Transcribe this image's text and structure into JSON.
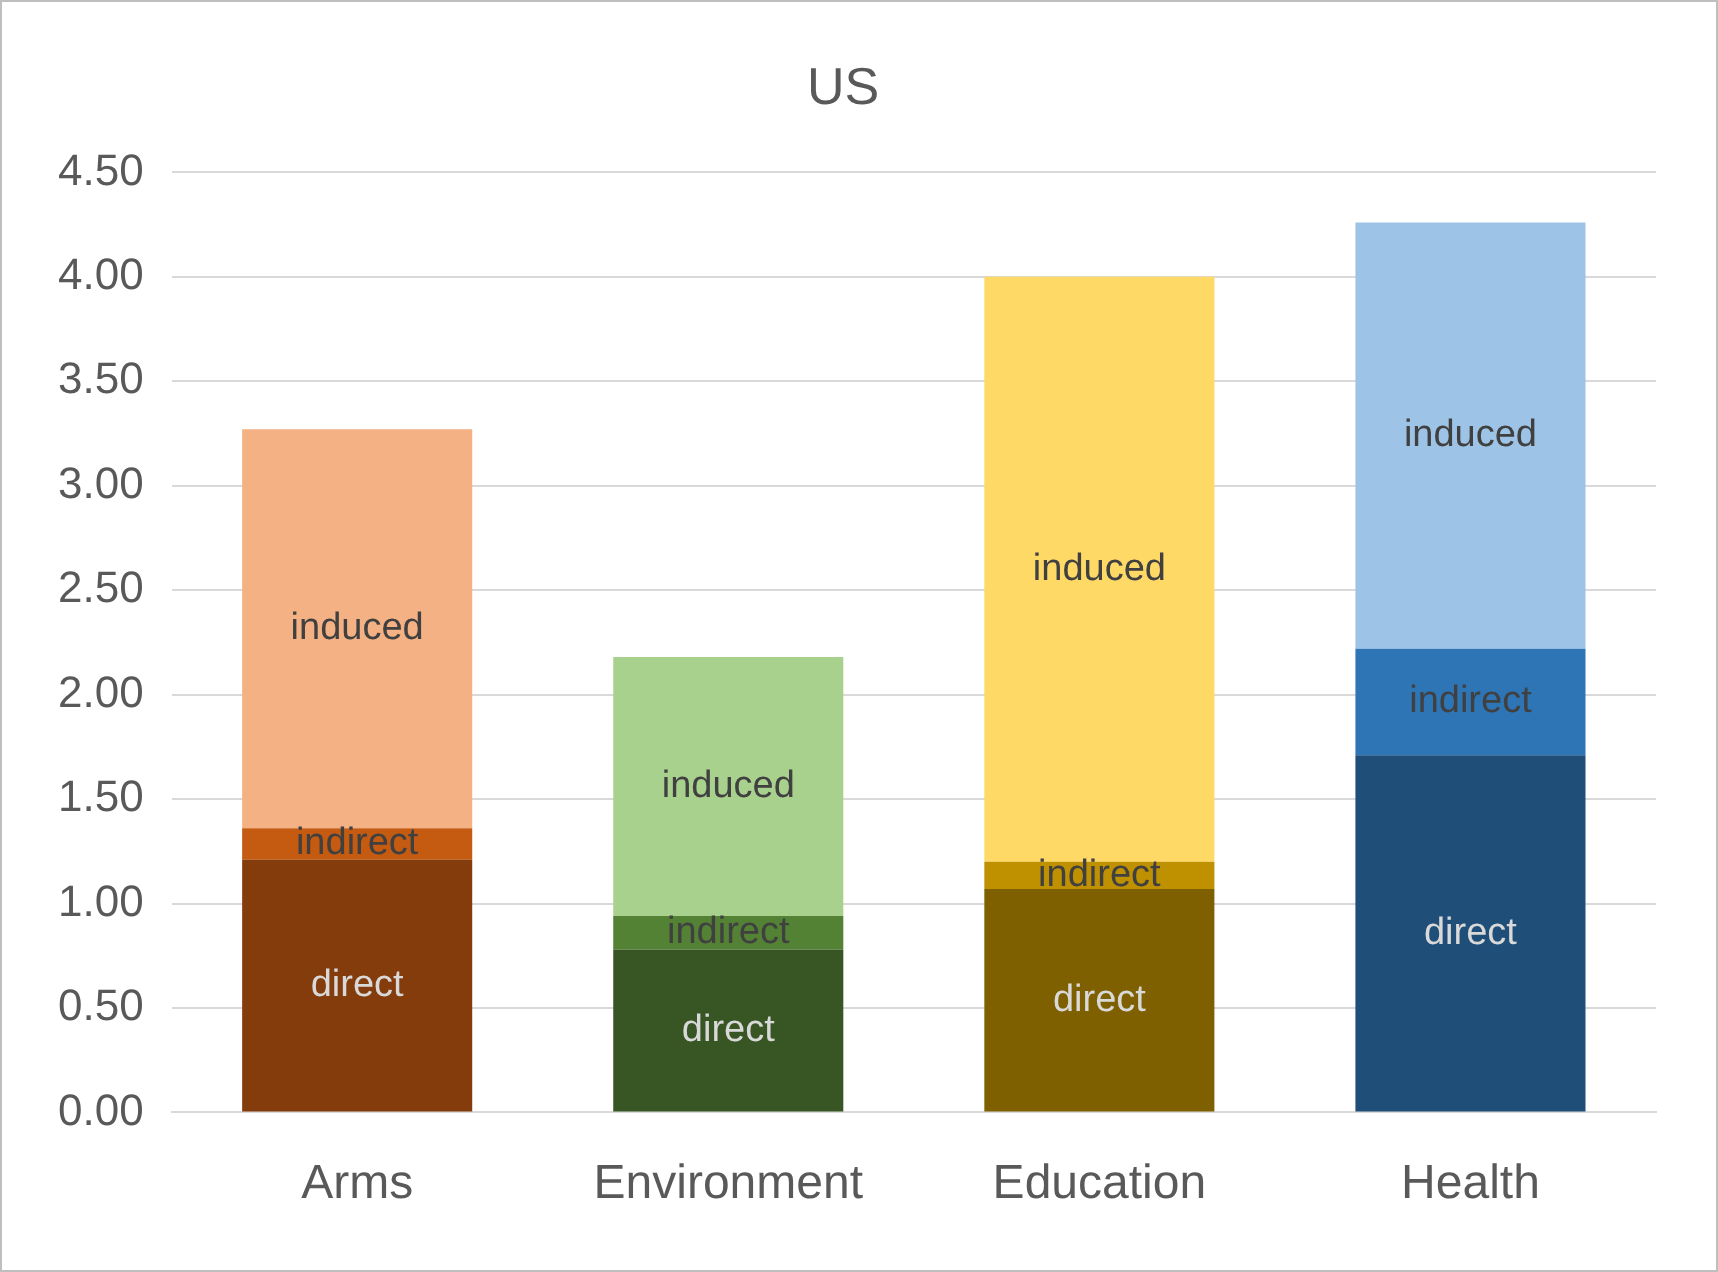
{
  "chart_data": {
    "type": "bar",
    "title": "US",
    "stacked": true,
    "categories": [
      "Arms",
      "Environment",
      "Education",
      "Health"
    ],
    "series": [
      {
        "name": "direct",
        "colors": [
          "#843c0c",
          "#375623",
          "#7f6000",
          "#1f4e79"
        ],
        "values": [
          1.21,
          0.78,
          1.07,
          1.71
        ]
      },
      {
        "name": "indirect",
        "colors": [
          "#c55a11",
          "#548235",
          "#bf9000",
          "#2e75b6"
        ],
        "values": [
          0.15,
          0.16,
          0.13,
          0.51
        ]
      },
      {
        "name": "induced",
        "colors": [
          "#f4b183",
          "#a9d18e",
          "#ffd966",
          "#9dc3e6"
        ],
        "values": [
          1.91,
          1.24,
          2.8,
          2.04
        ]
      }
    ],
    "ylim": [
      0,
      4.5
    ],
    "yticks": [
      {
        "value": 0,
        "label": "0.00"
      },
      {
        "value": 0.5,
        "label": "0.50"
      },
      {
        "value": 1,
        "label": "1.00"
      },
      {
        "value": 1.5,
        "label": "1.50"
      },
      {
        "value": 2,
        "label": "2.00"
      },
      {
        "value": 2.5,
        "label": "2.50"
      },
      {
        "value": 3,
        "label": "3.00"
      },
      {
        "value": 3.5,
        "label": "3.50"
      },
      {
        "value": 4,
        "label": "4.00"
      },
      {
        "value": 4.5,
        "label": "4.50"
      }
    ],
    "grid": "y",
    "legend": false
  }
}
